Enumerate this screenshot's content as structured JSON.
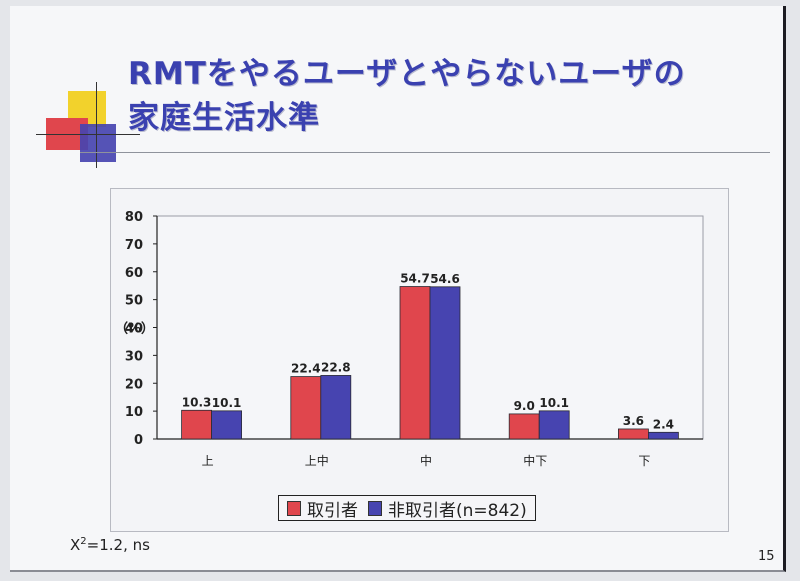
{
  "slide": {
    "title_lines": [
      "RMTをやるユーザとやらないユーザの",
      "家庭生活水準"
    ],
    "footnote_prefix": "X",
    "footnote_sup": "2",
    "footnote_rest": "=1.2, ns",
    "page_number": "15"
  },
  "colors": {
    "title": "#3a41b0",
    "series_1": "#e0464d",
    "series_2": "#4744b0",
    "deco_yellow": "#f2d22c",
    "deco_red": "#e0464d",
    "deco_blue": "#4744b0"
  },
  "chart_data": {
    "type": "bar",
    "title": "",
    "xlabel": "",
    "ylabel": "（%）",
    "ylim": [
      0,
      80
    ],
    "yticks": [
      0,
      10,
      20,
      30,
      40,
      50,
      60,
      70,
      80
    ],
    "categories": [
      "上",
      "上中",
      "中",
      "中下",
      "下"
    ],
    "series": [
      {
        "name": "取引者",
        "color": "#e0464d",
        "values": [
          10.3,
          22.4,
          54.7,
          9.0,
          3.6
        ],
        "labels": [
          "10.3",
          "22.4",
          "54.7",
          "9.0",
          "3.6"
        ]
      },
      {
        "name": "非取引者(n=842)",
        "color": "#4744b0",
        "values": [
          10.1,
          22.8,
          54.6,
          10.1,
          2.4
        ],
        "labels": [
          "10.1",
          "22.8",
          "54.6",
          "10.1",
          "2.4"
        ]
      }
    ],
    "legend_position": "bottom"
  }
}
